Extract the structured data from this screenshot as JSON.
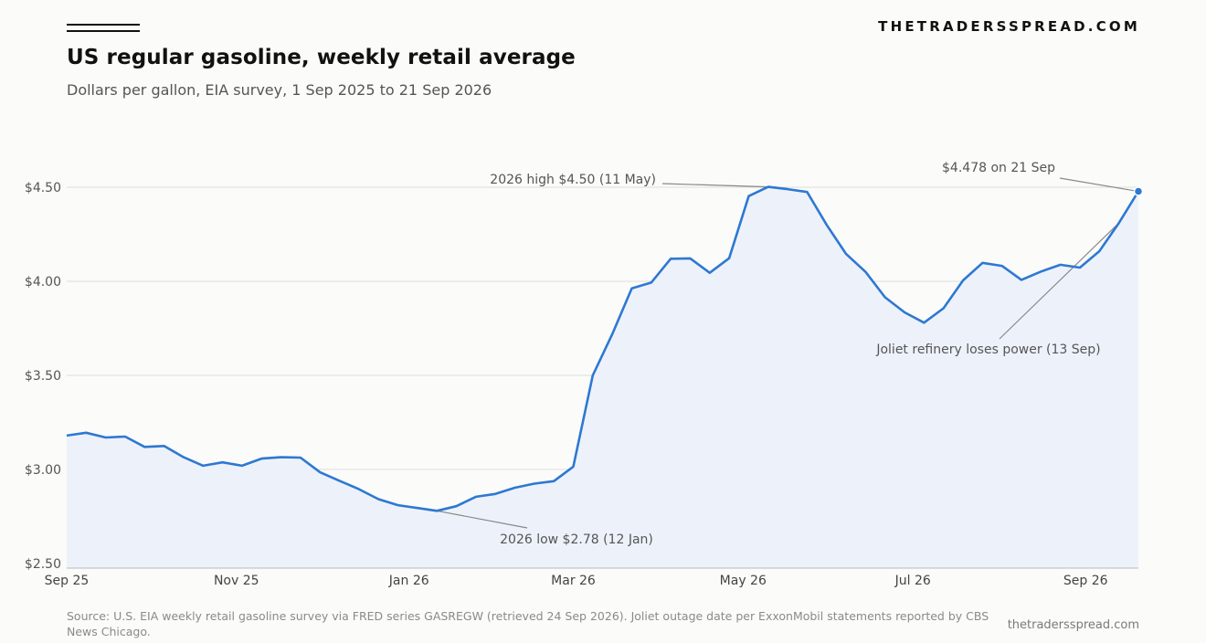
{
  "header": {
    "brand": "THETRADERSSPREAD.COM",
    "title": "US regular gasoline, weekly retail average",
    "subtitle": "Dollars per gallon, EIA survey, 1 Sep 2025 to 21 Sep 2026"
  },
  "footer": {
    "source": "Source: U.S. EIA weekly retail gasoline survey via FRED series GASREGW (retrieved 24 Sep 2026). Joliet outage date per ExxonMobil statements reported by CBS News Chicago.",
    "url": "thetradersspread.com"
  },
  "colors": {
    "line": "#2e78d2",
    "fill": "#edf2fa",
    "grid": "#dddddd",
    "annotation": "#888888"
  },
  "chart_data": {
    "type": "area",
    "ylim": [
      2.5,
      4.5
    ],
    "yticks": [
      {
        "value": 4.5,
        "label": "$4.50"
      },
      {
        "value": 4.0,
        "label": "$4.00"
      },
      {
        "value": 3.5,
        "label": "$3.50"
      },
      {
        "value": 3.0,
        "label": "$3.00"
      },
      {
        "value": 2.5,
        "label": "$2.50"
      }
    ],
    "xticks": [
      {
        "label": "Sep 25",
        "week": 0
      },
      {
        "label": "Nov 25",
        "week": 8.71
      },
      {
        "label": "Jan 26",
        "week": 17.57
      },
      {
        "label": "Mar 26",
        "week": 26.0
      },
      {
        "label": "May 26",
        "week": 34.71
      },
      {
        "label": "Jul 26",
        "week": 43.43
      },
      {
        "label": "Sep 26",
        "week": 52.29
      }
    ],
    "grid": true,
    "series": [
      {
        "values": [
          3.18,
          3.195,
          3.17,
          3.175,
          3.12,
          3.125,
          3.065,
          3.02,
          3.038,
          3.02,
          3.058,
          3.065,
          3.063,
          2.985,
          2.94,
          2.895,
          2.842,
          2.81,
          2.795,
          2.78,
          2.805,
          2.855,
          2.87,
          2.903,
          2.925,
          2.938,
          3.015,
          3.5,
          3.72,
          3.962,
          3.993,
          4.12,
          4.122,
          4.045,
          4.123,
          4.453,
          4.502,
          4.49,
          4.475,
          4.3,
          4.145,
          4.05,
          3.915,
          3.835,
          3.78,
          3.857,
          4.005,
          4.098,
          4.082,
          4.008,
          4.052,
          4.088,
          4.073,
          4.16,
          4.31,
          4.478
        ]
      }
    ],
    "annotations": [
      {
        "text": "2026 high $4.50 (11 May)",
        "week": 36,
        "value": 4.502
      },
      {
        "text": "2026 low $2.78 (12 Jan)",
        "week": 19,
        "value": 2.78
      },
      {
        "text": "$4.478 on 21 Sep",
        "week": 55,
        "value": 4.478
      },
      {
        "text": "Joliet refinery loses power (13 Sep)",
        "week": 53.9,
        "value": 4.3
      }
    ]
  }
}
